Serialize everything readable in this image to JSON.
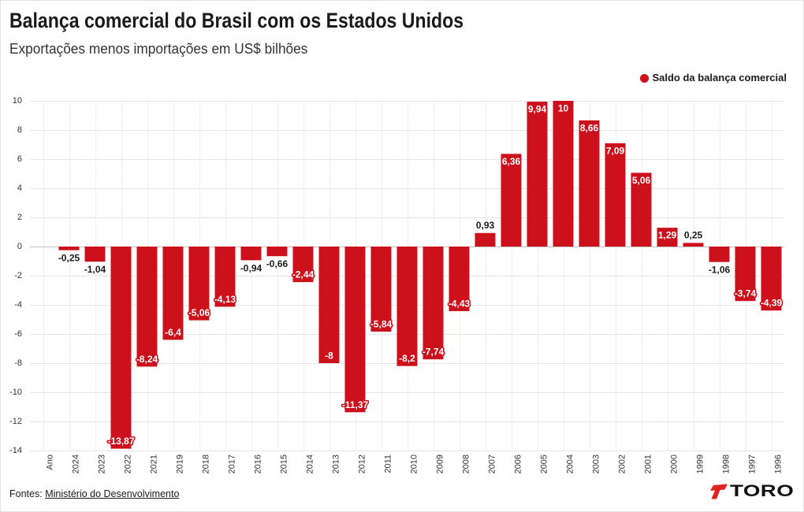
{
  "chart_data": {
    "type": "bar",
    "title": "Balança comercial do Brasil com os Estados Unidos",
    "subtitle": "Exportações menos importações em US$ bilhões",
    "xlabel": "",
    "ylabel": "",
    "categories": [
      "Ano",
      "2024",
      "2023",
      "2022",
      "2021",
      "2019",
      "2018",
      "2017",
      "2016",
      "2015",
      "2014",
      "2013",
      "2012",
      "2011",
      "2010",
      "2009",
      "2008",
      "2007",
      "2006",
      "2005",
      "2004",
      "2003",
      "2002",
      "2001",
      "2000",
      "1999",
      "1998",
      "1997",
      "1996"
    ],
    "series": [
      {
        "name": "Saldo da balança comercial",
        "color": "#cc101c",
        "values": [
          null,
          -0.25,
          -1.04,
          -13.87,
          -8.24,
          -6.4,
          -5.06,
          -4.13,
          -0.94,
          -0.66,
          -2.44,
          -8,
          -11.37,
          -5.84,
          -8.2,
          -7.74,
          -4.43,
          0.93,
          6.36,
          9.94,
          10,
          8.66,
          7.09,
          5.06,
          1.29,
          0.25,
          -1.06,
          -3.74,
          -4.39
        ],
        "labels": [
          null,
          "-0,25",
          "-1,04",
          "-13,87",
          "-8,24",
          "-6,4",
          "-5,06",
          "-4,13",
          "-0,94",
          "-0,66",
          "-2,44",
          "-8",
          "-11,37",
          "-5,84",
          "-8,2",
          "-7,74",
          "-4,43",
          "0,93",
          "6,36",
          "9,94",
          "10",
          "8,66",
          "7,09",
          "5,06",
          "1,29",
          "0,25",
          "-1,06",
          "-3,74",
          "-4,39"
        ]
      }
    ],
    "ylim": [
      -14,
      10
    ],
    "y_ticks": [
      10,
      8,
      6,
      4,
      2,
      0,
      -2,
      -4,
      -6,
      -8,
      -10,
      -12,
      -14
    ],
    "grid": true,
    "legend_position": "top-right"
  },
  "footer": {
    "source_prefix": "Fontes:",
    "source_link": "Ministério do Desenvolvimento"
  },
  "logo": {
    "text": "TORO",
    "color": "#e0231f"
  }
}
